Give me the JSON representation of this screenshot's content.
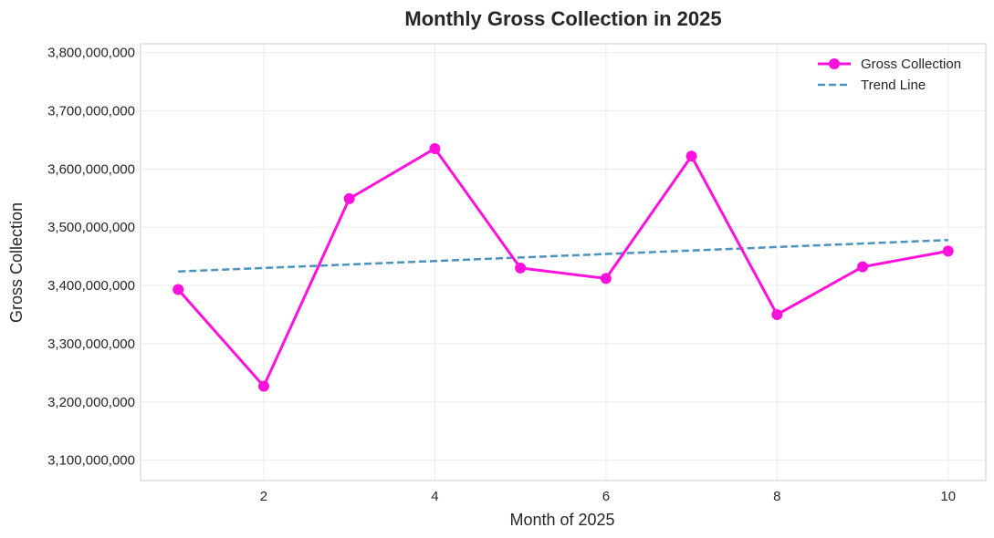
{
  "chart_data": {
    "type": "line",
    "title": "Monthly Gross Collection in 2025",
    "xlabel": "Month of 2025",
    "ylabel": "Gross Collection",
    "x": [
      1,
      2,
      3,
      4,
      5,
      6,
      7,
      8,
      9,
      10
    ],
    "xlim": [
      0.56,
      10.44
    ],
    "ylim": [
      3065000000,
      3815000000
    ],
    "xticks": [
      2,
      4,
      6,
      8,
      10
    ],
    "xtick_labels": [
      "2",
      "4",
      "6",
      "8",
      "10"
    ],
    "yticks": [
      3100000000,
      3200000000,
      3300000000,
      3400000000,
      3500000000,
      3600000000,
      3700000000,
      3800000000
    ],
    "ytick_labels": [
      "3,100,000,000",
      "3,200,000,000",
      "3,300,000,000",
      "3,400,000,000",
      "3,500,000,000",
      "3,600,000,000",
      "3,700,000,000",
      "3,800,000,000"
    ],
    "grid": true,
    "legend_position": "top-right",
    "series": [
      {
        "name": "Gross Collection",
        "style": "solid-line-with-markers",
        "color": "#ff11dd",
        "values": [
          3393000000,
          3227000000,
          3549000000,
          3635000000,
          3430000000,
          3412000000,
          3622000000,
          3350000000,
          3432000000,
          3459000000
        ]
      },
      {
        "name": "Trend Line",
        "style": "dashed",
        "color": "#4c92bf",
        "values": [
          3424000000,
          3430000000,
          3436000000,
          3442000000,
          3448000000,
          3454000000,
          3460000000,
          3466000000,
          3472000000,
          3478000000
        ]
      }
    ]
  }
}
